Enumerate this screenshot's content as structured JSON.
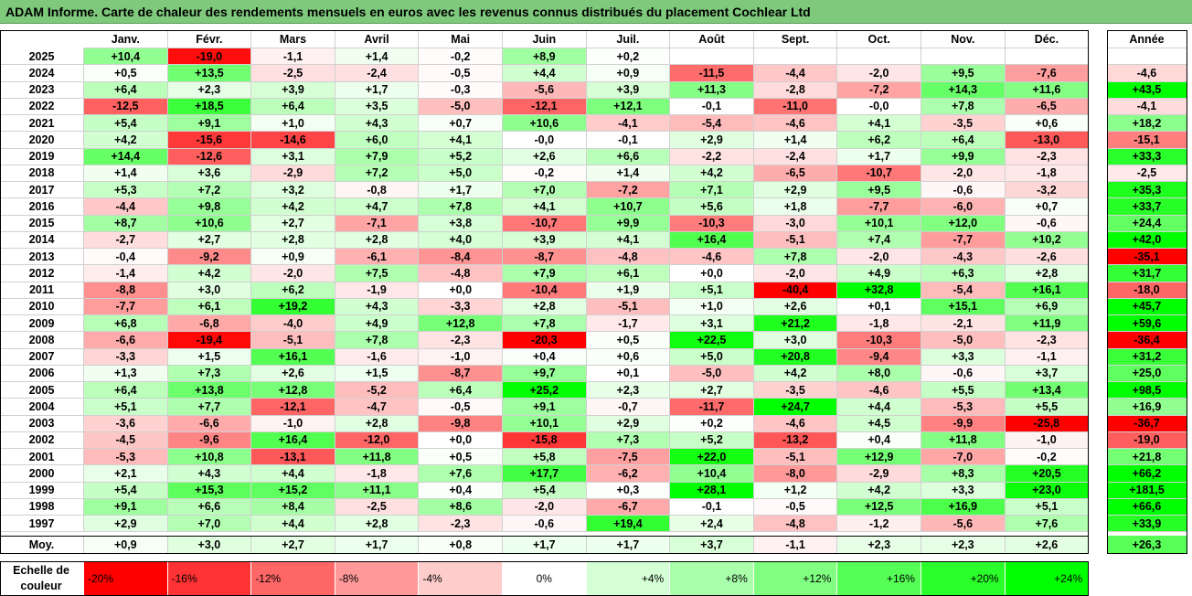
{
  "title": "ADAM Informe. Carte de chaleur des rendements mensuels en euros avec les revenus connus distribués du placement Cochlear Ltd",
  "chart_data": {
    "type": "heatmap",
    "title": "ADAM Informe. Carte de chaleur des rendements mensuels en euros avec les revenus connus distribués du placement Cochlear Ltd",
    "columns": [
      "Janv.",
      "Févr.",
      "Mars",
      "Avril",
      "Mai",
      "Juin",
      "Juil.",
      "Août",
      "Sept.",
      "Oct.",
      "Nov.",
      "Déc."
    ],
    "year_column_label": "Année",
    "average_label": "Moy.",
    "rows": [
      {
        "year": "2025",
        "values": [
          10.4,
          -19.0,
          -1.1,
          1.4,
          -0.2,
          8.9,
          0.2,
          null,
          null,
          null,
          null,
          null
        ],
        "labels": [
          "+10,4",
          "-19,0",
          "-1,1",
          "+1,4",
          "-0,2",
          "+8,9",
          "+0,2",
          "",
          "",
          "",
          "",
          ""
        ],
        "annual": null,
        "annual_label": ""
      },
      {
        "year": "2024",
        "values": [
          0.5,
          13.5,
          -2.5,
          -2.4,
          -0.5,
          4.4,
          0.9,
          -11.5,
          -4.4,
          -2.0,
          9.5,
          -7.6
        ],
        "labels": [
          "+0,5",
          "+13,5",
          "-2,5",
          "-2,4",
          "-0,5",
          "+4,4",
          "+0,9",
          "-11,5",
          "-4,4",
          "-2,0",
          "+9,5",
          "-7,6"
        ],
        "annual": -4.6,
        "annual_label": "-4,6"
      },
      {
        "year": "2023",
        "values": [
          6.4,
          2.3,
          3.9,
          1.7,
          -0.3,
          -5.6,
          3.9,
          11.3,
          -2.8,
          -7.2,
          14.3,
          11.6
        ],
        "labels": [
          "+6,4",
          "+2,3",
          "+3,9",
          "+1,7",
          "-0,3",
          "-5,6",
          "+3,9",
          "+11,3",
          "-2,8",
          "-7,2",
          "+14,3",
          "+11,6"
        ],
        "annual": 43.5,
        "annual_label": "+43,5"
      },
      {
        "year": "2022",
        "values": [
          -12.5,
          18.5,
          6.4,
          3.5,
          -5.0,
          -12.1,
          12.1,
          -0.1,
          -11.0,
          -0.0,
          7.8,
          -6.5
        ],
        "labels": [
          "-12,5",
          "+18,5",
          "+6,4",
          "+3,5",
          "-5,0",
          "-12,1",
          "+12,1",
          "-0,1",
          "-11,0",
          "-0,0",
          "+7,8",
          "-6,5"
        ],
        "annual": -4.1,
        "annual_label": "-4,1"
      },
      {
        "year": "2021",
        "values": [
          5.4,
          9.1,
          1.0,
          4.3,
          0.7,
          10.6,
          -4.1,
          -5.4,
          -4.6,
          4.1,
          -3.5,
          0.6
        ],
        "labels": [
          "+5,4",
          "+9,1",
          "+1,0",
          "+4,3",
          "+0,7",
          "+10,6",
          "-4,1",
          "-5,4",
          "-4,6",
          "+4,1",
          "-3,5",
          "+0,6"
        ],
        "annual": 18.2,
        "annual_label": "+18,2"
      },
      {
        "year": "2020",
        "values": [
          4.2,
          -15.6,
          -14.6,
          6.0,
          4.1,
          -0.0,
          -0.1,
          2.9,
          1.4,
          6.2,
          6.4,
          -13.0
        ],
        "labels": [
          "+4,2",
          "-15,6",
          "-14,6",
          "+6,0",
          "+4,1",
          "-0,0",
          "-0,1",
          "+2,9",
          "+1,4",
          "+6,2",
          "+6,4",
          "-13,0"
        ],
        "annual": -15.1,
        "annual_label": "-15,1"
      },
      {
        "year": "2019",
        "values": [
          14.4,
          -12.6,
          3.1,
          7.9,
          5.2,
          2.6,
          6.6,
          -2.2,
          -2.4,
          1.7,
          9.9,
          -2.3
        ],
        "labels": [
          "+14,4",
          "-12,6",
          "+3,1",
          "+7,9",
          "+5,2",
          "+2,6",
          "+6,6",
          "-2,2",
          "-2,4",
          "+1,7",
          "+9,9",
          "-2,3"
        ],
        "annual": 33.3,
        "annual_label": "+33,3"
      },
      {
        "year": "2018",
        "values": [
          1.4,
          3.6,
          -2.9,
          7.2,
          5.0,
          -0.2,
          1.4,
          4.2,
          -6.5,
          -10.7,
          -2.0,
          -1.8
        ],
        "labels": [
          "+1,4",
          "+3,6",
          "-2,9",
          "+7,2",
          "+5,0",
          "-0,2",
          "+1,4",
          "+4,2",
          "-6,5",
          "-10,7",
          "-2,0",
          "-1,8"
        ],
        "annual": -2.5,
        "annual_label": "-2,5"
      },
      {
        "year": "2017",
        "values": [
          5.3,
          7.2,
          3.2,
          -0.8,
          1.7,
          7.0,
          -7.2,
          7.1,
          2.9,
          9.5,
          -0.6,
          -3.2
        ],
        "labels": [
          "+5,3",
          "+7,2",
          "+3,2",
          "-0,8",
          "+1,7",
          "+7,0",
          "-7,2",
          "+7,1",
          "+2,9",
          "+9,5",
          "-0,6",
          "-3,2"
        ],
        "annual": 35.3,
        "annual_label": "+35,3"
      },
      {
        "year": "2016",
        "values": [
          -4.4,
          9.8,
          4.2,
          4.7,
          7.8,
          4.1,
          10.7,
          5.6,
          1.8,
          -7.7,
          -6.0,
          0.7
        ],
        "labels": [
          "-4,4",
          "+9,8",
          "+4,2",
          "+4,7",
          "+7,8",
          "+4,1",
          "+10,7",
          "+5,6",
          "+1,8",
          "-7,7",
          "-6,0",
          "+0,7"
        ],
        "annual": 33.7,
        "annual_label": "+33,7"
      },
      {
        "year": "2015",
        "values": [
          8.7,
          10.6,
          2.7,
          -7.1,
          3.8,
          -10.7,
          9.9,
          -10.3,
          -3.0,
          10.1,
          12.0,
          -0.6
        ],
        "labels": [
          "+8,7",
          "+10,6",
          "+2,7",
          "-7,1",
          "+3,8",
          "-10,7",
          "+9,9",
          "-10,3",
          "-3,0",
          "+10,1",
          "+12,0",
          "-0,6"
        ],
        "annual": 24.4,
        "annual_label": "+24,4"
      },
      {
        "year": "2014",
        "values": [
          -2.7,
          2.7,
          2.8,
          2.8,
          4.0,
          3.9,
          4.1,
          16.4,
          -5.1,
          7.4,
          -7.7,
          10.2
        ],
        "labels": [
          "-2,7",
          "+2,7",
          "+2,8",
          "+2,8",
          "+4,0",
          "+3,9",
          "+4,1",
          "+16,4",
          "-5,1",
          "+7,4",
          "-7,7",
          "+10,2"
        ],
        "annual": 42.0,
        "annual_label": "+42,0"
      },
      {
        "year": "2013",
        "values": [
          -0.4,
          -9.2,
          0.9,
          -6.1,
          -8.4,
          -8.7,
          -4.8,
          -4.6,
          7.8,
          -2.0,
          -4.3,
          -2.6
        ],
        "labels": [
          "-0,4",
          "-9,2",
          "+0,9",
          "-6,1",
          "-8,4",
          "-8,7",
          "-4,8",
          "-4,6",
          "+7,8",
          "-2,0",
          "-4,3",
          "-2,6"
        ],
        "annual": -35.1,
        "annual_label": "-35,1"
      },
      {
        "year": "2012",
        "values": [
          -1.4,
          4.2,
          -2.0,
          7.5,
          -4.8,
          7.9,
          6.1,
          0.0,
          -2.0,
          4.9,
          6.3,
          2.8
        ],
        "labels": [
          "-1,4",
          "+4,2",
          "-2,0",
          "+7,5",
          "-4,8",
          "+7,9",
          "+6,1",
          "+0,0",
          "-2,0",
          "+4,9",
          "+6,3",
          "+2,8"
        ],
        "annual": 31.7,
        "annual_label": "+31,7"
      },
      {
        "year": "2011",
        "values": [
          -8.8,
          3.0,
          6.2,
          -1.9,
          0.0,
          -10.4,
          1.9,
          5.1,
          -40.4,
          32.8,
          -5.4,
          16.1
        ],
        "labels": [
          "-8,8",
          "+3,0",
          "+6,2",
          "-1,9",
          "+0,0",
          "-10,4",
          "+1,9",
          "+5,1",
          "-40,4",
          "+32,8",
          "-5,4",
          "+16,1"
        ],
        "annual": -18.0,
        "annual_label": "-18,0"
      },
      {
        "year": "2010",
        "values": [
          -7.7,
          6.1,
          19.2,
          4.3,
          -3.3,
          2.8,
          -5.1,
          1.0,
          2.6,
          0.1,
          15.1,
          6.9
        ],
        "labels": [
          "-7,7",
          "+6,1",
          "+19,2",
          "+4,3",
          "-3,3",
          "+2,8",
          "-5,1",
          "+1,0",
          "+2,6",
          "+0,1",
          "+15,1",
          "+6,9"
        ],
        "annual": 45.7,
        "annual_label": "+45,7"
      },
      {
        "year": "2009",
        "values": [
          6.8,
          -6.8,
          -4.0,
          4.9,
          12.8,
          7.8,
          -1.7,
          3.1,
          21.2,
          -1.8,
          -2.1,
          11.9
        ],
        "labels": [
          "+6,8",
          "-6,8",
          "-4,0",
          "+4,9",
          "+12,8",
          "+7,8",
          "-1,7",
          "+3,1",
          "+21,2",
          "-1,8",
          "-2,1",
          "+11,9"
        ],
        "annual": 59.6,
        "annual_label": "+59,6"
      },
      {
        "year": "2008",
        "values": [
          -6.6,
          -19.4,
          -5.1,
          7.8,
          -2.3,
          -20.3,
          0.5,
          22.5,
          3.0,
          -10.3,
          -5.0,
          -2.3
        ],
        "labels": [
          "-6,6",
          "-19,4",
          "-5,1",
          "+7,8",
          "-2,3",
          "-20,3",
          "+0,5",
          "+22,5",
          "+3,0",
          "-10,3",
          "-5,0",
          "-2,3"
        ],
        "annual": -36.4,
        "annual_label": "-36,4"
      },
      {
        "year": "2007",
        "values": [
          -3.3,
          1.5,
          16.1,
          -1.6,
          -1.0,
          0.4,
          0.6,
          5.0,
          20.8,
          -9.4,
          3.3,
          -1.1
        ],
        "labels": [
          "-3,3",
          "+1,5",
          "+16,1",
          "-1,6",
          "-1,0",
          "+0,4",
          "+0,6",
          "+5,0",
          "+20,8",
          "-9,4",
          "+3,3",
          "-1,1"
        ],
        "annual": 31.2,
        "annual_label": "+31,2"
      },
      {
        "year": "2006",
        "values": [
          1.3,
          7.3,
          2.6,
          1.5,
          -8.7,
          9.7,
          0.1,
          -5.0,
          4.2,
          8.0,
          -0.6,
          3.7
        ],
        "labels": [
          "+1,3",
          "+7,3",
          "+2,6",
          "+1,5",
          "-8,7",
          "+9,7",
          "+0,1",
          "-5,0",
          "+4,2",
          "+8,0",
          "-0,6",
          "+3,7"
        ],
        "annual": 25.0,
        "annual_label": "+25,0"
      },
      {
        "year": "2005",
        "values": [
          6.4,
          13.8,
          12.8,
          -5.2,
          6.4,
          25.2,
          2.3,
          2.7,
          -3.5,
          -4.6,
          5.5,
          13.4
        ],
        "labels": [
          "+6,4",
          "+13,8",
          "+12,8",
          "-5,2",
          "+6,4",
          "+25,2",
          "+2,3",
          "+2,7",
          "-3,5",
          "-4,6",
          "+5,5",
          "+13,4"
        ],
        "annual": 98.5,
        "annual_label": "+98,5"
      },
      {
        "year": "2004",
        "values": [
          5.1,
          7.7,
          -12.1,
          -4.7,
          -0.5,
          9.1,
          -0.7,
          -11.7,
          24.7,
          4.4,
          -5.3,
          5.5
        ],
        "labels": [
          "+5,1",
          "+7,7",
          "-12,1",
          "-4,7",
          "-0,5",
          "+9,1",
          "-0,7",
          "-11,7",
          "+24,7",
          "+4,4",
          "-5,3",
          "+5,5"
        ],
        "annual": 16.9,
        "annual_label": "+16,9"
      },
      {
        "year": "2003",
        "values": [
          -3.6,
          -6.6,
          -1.0,
          2.8,
          -9.8,
          10.1,
          2.9,
          0.2,
          -4.6,
          4.5,
          -9.9,
          -25.8
        ],
        "labels": [
          "-3,6",
          "-6,6",
          "-1,0",
          "+2,8",
          "-9,8",
          "+10,1",
          "+2,9",
          "+0,2",
          "-4,6",
          "+4,5",
          "-9,9",
          "-25,8"
        ],
        "annual": -36.7,
        "annual_label": "-36,7"
      },
      {
        "year": "2002",
        "values": [
          -4.5,
          -9.6,
          16.4,
          -12.0,
          0.0,
          -15.8,
          7.3,
          5.2,
          -13.2,
          0.4,
          11.8,
          -1.0
        ],
        "labels": [
          "-4,5",
          "-9,6",
          "+16,4",
          "-12,0",
          "+0,0",
          "-15,8",
          "+7,3",
          "+5,2",
          "-13,2",
          "+0,4",
          "+11,8",
          "-1,0"
        ],
        "annual": -19.0,
        "annual_label": "-19,0"
      },
      {
        "year": "2001",
        "values": [
          -5.3,
          10.8,
          -13.1,
          11.8,
          0.5,
          5.8,
          -7.5,
          22.0,
          -5.1,
          12.9,
          -7.0,
          -0.2
        ],
        "labels": [
          "-5,3",
          "+10,8",
          "-13,1",
          "+11,8",
          "+0,5",
          "+5,8",
          "-7,5",
          "+22,0",
          "-5,1",
          "+12,9",
          "-7,0",
          "-0,2"
        ],
        "annual": 21.8,
        "annual_label": "+21,8"
      },
      {
        "year": "2000",
        "values": [
          2.1,
          4.3,
          4.4,
          -1.8,
          7.6,
          17.7,
          -6.2,
          10.4,
          -8.0,
          -2.9,
          8.3,
          20.5
        ],
        "labels": [
          "+2,1",
          "+4,3",
          "+4,4",
          "-1,8",
          "+7,6",
          "+17,7",
          "-6,2",
          "+10,4",
          "-8,0",
          "-2,9",
          "+8,3",
          "+20,5"
        ],
        "annual": 66.2,
        "annual_label": "+66,2"
      },
      {
        "year": "1999",
        "values": [
          5.4,
          15.3,
          15.2,
          11.1,
          0.4,
          5.4,
          0.3,
          28.1,
          1.2,
          4.2,
          3.3,
          23.0
        ],
        "labels": [
          "+5,4",
          "+15,3",
          "+15,2",
          "+11,1",
          "+0,4",
          "+5,4",
          "+0,3",
          "+28,1",
          "+1,2",
          "+4,2",
          "+3,3",
          "+23,0"
        ],
        "annual": 181.5,
        "annual_label": "+181,5"
      },
      {
        "year": "1998",
        "values": [
          9.1,
          6.6,
          8.4,
          -2.5,
          8.6,
          -2.0,
          -6.7,
          -0.1,
          -0.5,
          12.5,
          16.9,
          5.1
        ],
        "labels": [
          "+9,1",
          "+6,6",
          "+8,4",
          "-2,5",
          "+8,6",
          "-2,0",
          "-6,7",
          "-0,1",
          "-0,5",
          "+12,5",
          "+16,9",
          "+5,1"
        ],
        "annual": 66.6,
        "annual_label": "+66,6"
      },
      {
        "year": "1997",
        "values": [
          2.9,
          7.0,
          4.4,
          2.8,
          -2.3,
          -0.6,
          19.4,
          2.4,
          -4.8,
          -1.2,
          -5.6,
          7.6
        ],
        "labels": [
          "+2,9",
          "+7,0",
          "+4,4",
          "+2,8",
          "-2,3",
          "-0,6",
          "+19,4",
          "+2,4",
          "-4,8",
          "-1,2",
          "-5,6",
          "+7,6"
        ],
        "annual": 33.9,
        "annual_label": "+33,9"
      }
    ],
    "average": {
      "values": [
        0.9,
        3.0,
        2.7,
        1.7,
        0.8,
        1.7,
        1.7,
        3.7,
        -1.1,
        2.3,
        2.3,
        2.6
      ],
      "labels": [
        "+0,9",
        "+3,0",
        "+2,7",
        "+1,7",
        "+0,8",
        "+1,7",
        "+1,7",
        "+3,7",
        "-1,1",
        "+2,3",
        "+2,3",
        "+2,6"
      ],
      "annual": 26.3,
      "annual_label": "+26,3"
    },
    "color_scale": {
      "label_line1": "Echelle de",
      "label_line2": "couleur",
      "steps": [
        {
          "value": -20,
          "label": "-20%"
        },
        {
          "value": -16,
          "label": "-16%"
        },
        {
          "value": -12,
          "label": "-12%"
        },
        {
          "value": -8,
          "label": "-8%"
        },
        {
          "value": -4,
          "label": "-4%"
        },
        {
          "value": 0,
          "label": "0%"
        },
        {
          "value": 4,
          "label": "+4%"
        },
        {
          "value": 8,
          "label": "+8%"
        },
        {
          "value": 12,
          "label": "+12%"
        },
        {
          "value": 16,
          "label": "+16%"
        },
        {
          "value": 20,
          "label": "+20%"
        },
        {
          "value": 24,
          "label": "+24%"
        }
      ],
      "negative_color": "#ff0000",
      "neutral_color": "#ffffff",
      "positive_color": "#00ff00"
    }
  }
}
